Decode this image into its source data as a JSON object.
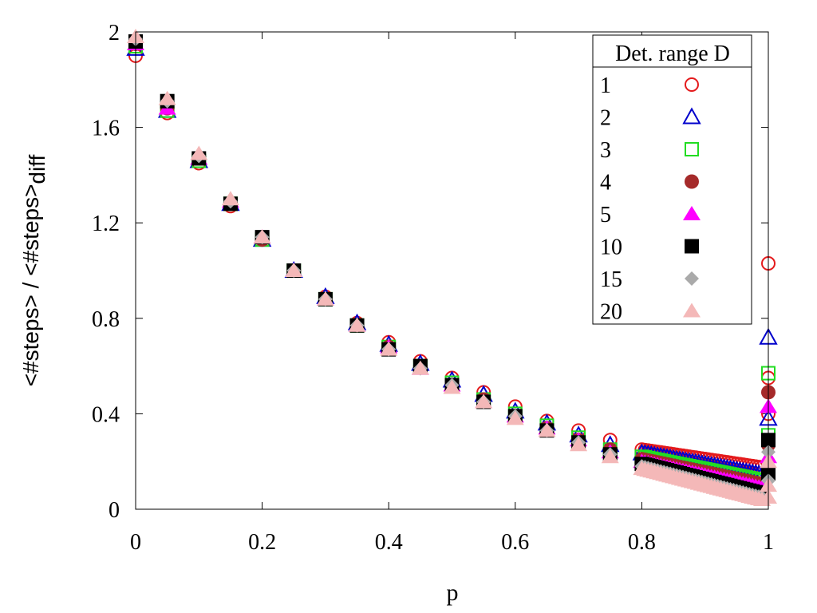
{
  "chart_data": {
    "type": "scatter",
    "xlabel": "p",
    "ylabel": "<#steps> / <#steps>",
    "ylabel_subscript": "diff",
    "xlim": [
      0,
      1
    ],
    "ylim": [
      0,
      2
    ],
    "xticks": [
      "0",
      "0.2",
      "0.4",
      "0.6",
      "0.8",
      "1"
    ],
    "yticks": [
      "0",
      "0.4",
      "0.8",
      "1.2",
      "1.6",
      "2"
    ],
    "grid": false,
    "legend": {
      "title": "Det. range D",
      "placement": "top-right"
    },
    "x_coarse": [
      0,
      0.05,
      0.1,
      0.15,
      0.2,
      0.25,
      0.3,
      0.35,
      0.4,
      0.45,
      0.5,
      0.55,
      0.6,
      0.65,
      0.7,
      0.75
    ],
    "x_fine_start": 0.8,
    "x_fine_end": 0.99,
    "x_fine_step": 0.005,
    "series": [
      {
        "name": "1",
        "marker": "circle-open",
        "color": "#e41a1c",
        "coarse": [
          1.9,
          1.66,
          1.45,
          1.27,
          1.13,
          1.0,
          0.89,
          0.78,
          0.7,
          0.62,
          0.55,
          0.49,
          0.43,
          0.37,
          0.33,
          0.29
        ],
        "fine_start": 0.25,
        "fine_end": 0.175,
        "p1": [
          1.03,
          0.55,
          0.4
        ]
      },
      {
        "name": "2",
        "marker": "triangle-open",
        "color": "#0000cc",
        "coarse": [
          1.93,
          1.67,
          1.46,
          1.28,
          1.13,
          1.0,
          0.89,
          0.78,
          0.69,
          0.61,
          0.54,
          0.48,
          0.41,
          0.36,
          0.31,
          0.27
        ],
        "fine_start": 0.235,
        "fine_end": 0.145,
        "p1": [
          0.72,
          0.38
        ]
      },
      {
        "name": "3",
        "marker": "square-open",
        "color": "#22dd22",
        "coarse": [
          1.94,
          1.67,
          1.46,
          1.28,
          1.13,
          1.0,
          0.88,
          0.77,
          0.68,
          0.6,
          0.53,
          0.46,
          0.4,
          0.35,
          0.3,
          0.25
        ],
        "fine_start": 0.22,
        "fine_end": 0.12,
        "p1": [
          0.57,
          0.31
        ]
      },
      {
        "name": "4",
        "marker": "circle-filled",
        "color": "#a52a2a",
        "coarse": [
          1.95,
          1.68,
          1.47,
          1.28,
          1.13,
          1.0,
          0.88,
          0.77,
          0.68,
          0.6,
          0.52,
          0.46,
          0.39,
          0.34,
          0.29,
          0.25
        ],
        "fine_start": 0.21,
        "fine_end": 0.105,
        "p1": [
          0.49,
          0.27
        ]
      },
      {
        "name": "5",
        "marker": "triangle-filled",
        "color": "#ff00ff",
        "coarse": [
          1.95,
          1.68,
          1.47,
          1.29,
          1.14,
          1.0,
          0.88,
          0.77,
          0.68,
          0.59,
          0.52,
          0.45,
          0.39,
          0.34,
          0.29,
          0.24
        ],
        "fine_start": 0.2,
        "fine_end": 0.09,
        "p1": [
          0.43,
          0.22
        ]
      },
      {
        "name": "10",
        "marker": "square-filled",
        "color": "#000000",
        "coarse": [
          1.96,
          1.71,
          1.47,
          1.28,
          1.14,
          1.0,
          0.88,
          0.77,
          0.67,
          0.6,
          0.52,
          0.45,
          0.39,
          0.33,
          0.28,
          0.23
        ],
        "fine_start": 0.19,
        "fine_end": 0.065,
        "p1": [
          0.29,
          0.15
        ]
      },
      {
        "name": "15",
        "marker": "diamond-filled",
        "color": "#aaaaaa",
        "coarse": [
          1.97,
          1.71,
          1.48,
          1.29,
          1.14,
          1.0,
          0.88,
          0.77,
          0.67,
          0.59,
          0.52,
          0.45,
          0.39,
          0.33,
          0.28,
          0.23
        ],
        "fine_start": 0.18,
        "fine_end": 0.05,
        "p1": [
          0.24,
          0.12
        ]
      },
      {
        "name": "20",
        "marker": "triangle-filled",
        "color": "#f4b8b8",
        "coarse": [
          1.98,
          1.72,
          1.49,
          1.3,
          1.14,
          1.0,
          0.88,
          0.77,
          0.67,
          0.59,
          0.51,
          0.45,
          0.38,
          0.33,
          0.27,
          0.22
        ],
        "fine_start": 0.17,
        "fine_end": 0.04,
        "p1": [
          0.2,
          0.1,
          0.05
        ]
      }
    ]
  }
}
